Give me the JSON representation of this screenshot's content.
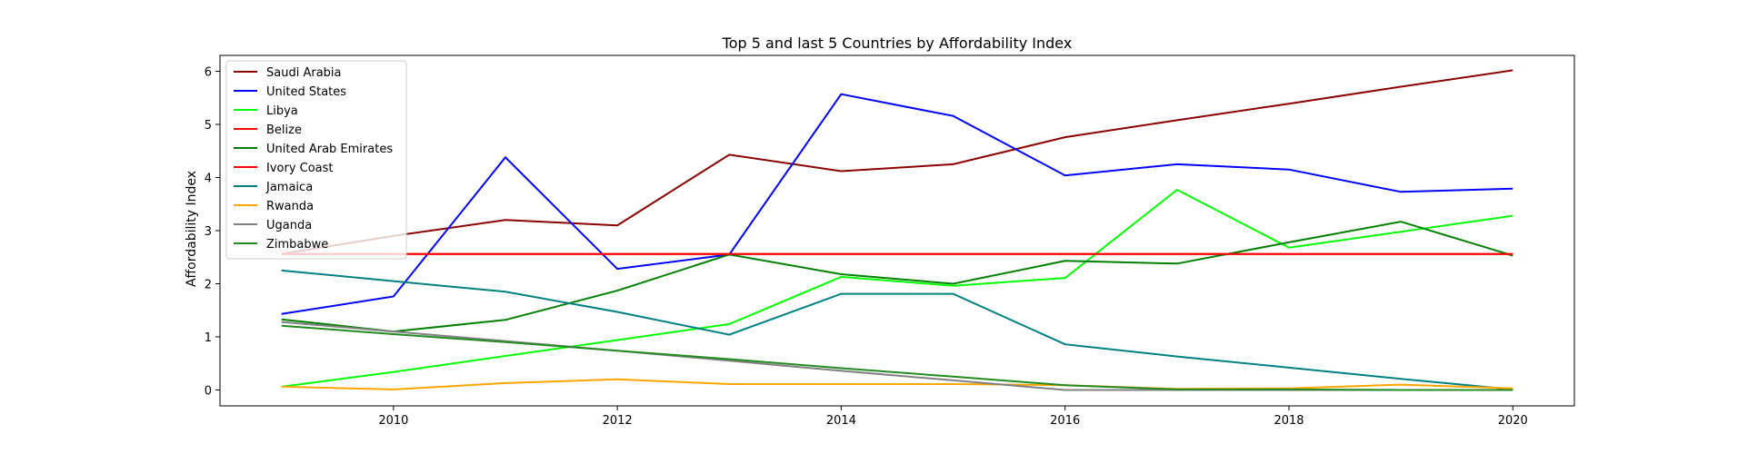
{
  "chart_data": {
    "type": "line",
    "title": "Top 5 and last 5 Countries by Affordability Index",
    "xlabel": "",
    "ylabel": "Affordability Index",
    "x": [
      2009,
      2010,
      2011,
      2012,
      2013,
      2014,
      2015,
      2016,
      2017,
      2018,
      2019,
      2020
    ],
    "xticks": [
      2010,
      2012,
      2014,
      2016,
      2018,
      2020
    ],
    "yticks": [
      0,
      1,
      2,
      3,
      4,
      5,
      6
    ],
    "xlim": [
      2008.45,
      2020.55
    ],
    "ylim": [
      -0.3,
      6.3
    ],
    "grid": false,
    "legend": "top-left",
    "series": [
      {
        "name": "Saudi Arabia",
        "color": "#8b0000",
        "values": [
          2.56,
          2.9,
          3.2,
          3.1,
          4.43,
          4.12,
          4.25,
          4.76,
          5.08,
          5.39,
          5.71,
          6.02
        ]
      },
      {
        "name": "United States",
        "color": "#0000ff",
        "values": [
          1.43,
          1.76,
          4.38,
          2.28,
          2.55,
          5.57,
          5.16,
          4.04,
          4.25,
          4.15,
          3.73,
          3.79
        ]
      },
      {
        "name": "Libya",
        "color": "#00ff00",
        "values": [
          0.06,
          0.34,
          0.64,
          0.94,
          1.24,
          2.13,
          1.96,
          2.11,
          3.77,
          2.68,
          2.98,
          3.28
        ]
      },
      {
        "name": "Belize",
        "color": "#ff0000",
        "values": [
          2.56,
          2.56,
          2.56,
          2.56,
          2.56,
          2.56,
          2.56,
          2.56,
          2.56,
          2.56,
          2.56,
          2.56
        ]
      },
      {
        "name": "United Arab Emirates",
        "color": "#008000",
        "values": [
          1.33,
          1.1,
          1.32,
          1.87,
          2.55,
          2.18,
          2.0,
          2.43,
          2.38,
          2.78,
          3.17,
          2.53
        ]
      },
      {
        "name": "Ivory Coast",
        "color": "#ff0000",
        "values": [
          2.56,
          2.56,
          2.56,
          2.56,
          2.56,
          2.56,
          2.56,
          2.56,
          2.56,
          2.56,
          2.56,
          2.56
        ]
      },
      {
        "name": "Jamaica",
        "color": "#008080",
        "values": [
          2.25,
          2.05,
          1.85,
          1.47,
          1.04,
          1.81,
          1.81,
          0.86,
          0.63,
          0.42,
          0.21,
          0.01
        ]
      },
      {
        "name": "Rwanda",
        "color": "#ffa500",
        "values": [
          0.06,
          0.01,
          0.13,
          0.2,
          0.11,
          0.11,
          0.11,
          0.09,
          0.02,
          0.03,
          0.1,
          0.03
        ]
      },
      {
        "name": "Uganda",
        "color": "#808080",
        "values": [
          1.28,
          1.1,
          0.92,
          0.74,
          0.55,
          0.36,
          0.18,
          0.0,
          0.0,
          0.0,
          0.0,
          0.0
        ]
      },
      {
        "name": "Zimbabwe",
        "color": "#228b22",
        "values": [
          1.21,
          1.05,
          0.9,
          0.74,
          0.58,
          0.41,
          0.25,
          0.09,
          0.01,
          0.01,
          0.0,
          0.0
        ]
      }
    ]
  }
}
